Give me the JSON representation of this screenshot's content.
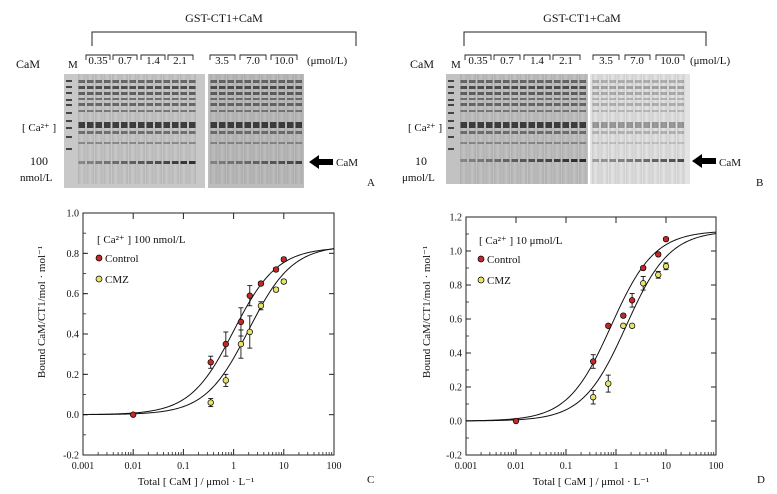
{
  "panels_top": [
    {
      "header": "GST-CT1+CaM",
      "lane_labels": [
        "M",
        "0.35",
        "0.7",
        "1.4",
        "2.1",
        "3.5",
        "7.0",
        "10.0"
      ],
      "unit": "(μmol/L)",
      "left_label": "CaM",
      "ca_label": "[ Ca²⁺ ]",
      "conc_value": "100",
      "conc_unit": "nmol/L",
      "arrow_label": "CaM",
      "panel_letter": "A"
    },
    {
      "header": "GST-CT1+CaM",
      "lane_labels": [
        "M",
        "0.35",
        "0.7",
        "1.4",
        "2.1",
        "3.5",
        "7.0",
        "10.0"
      ],
      "unit": "(μmol/L)",
      "left_label": "CaM",
      "ca_label": "[ Ca²⁺ ]",
      "conc_value": "10",
      "conc_unit": "μmol/L",
      "arrow_label": "CaM",
      "panel_letter": "B"
    }
  ],
  "chart_data": [
    {
      "type": "scatter",
      "panel_letter": "C",
      "annotation": "[ Ca²⁺ ] 100 nmol/L",
      "xlabel": "Total [ CaM ] / μmol · L⁻¹",
      "ylabel": "Bound CaM/CT1/mol · mol⁻¹",
      "xscale": "log",
      "xlim": [
        0.001,
        100
      ],
      "ylim": [
        -0.2,
        1.0
      ],
      "xticks": [
        "0.001",
        "0.01",
        "0.1",
        "1",
        "10",
        "100"
      ],
      "yticks": [
        "-0.2",
        "0.0",
        "0.2",
        "0.4",
        "0.6",
        "0.8",
        "1.0"
      ],
      "legend_position": "top-left",
      "series": [
        {
          "name": "Control",
          "color": "#c62828",
          "x": [
            0.01,
            0.35,
            0.7,
            1.4,
            2.1,
            3.5,
            7.0,
            10.0
          ],
          "y": [
            0.0,
            0.26,
            0.35,
            0.46,
            0.59,
            0.65,
            0.72,
            0.77
          ],
          "err": [
            0,
            0.03,
            0.06,
            0.07,
            0.05,
            0.01,
            0.01,
            0.01
          ],
          "fit": {
            "bmax": 0.83,
            "kd": 1.0
          }
        },
        {
          "name": "CMZ",
          "color": "#e6e36a",
          "x": [
            0.35,
            0.7,
            1.4,
            2.1,
            3.5,
            7.0,
            10.0
          ],
          "y": [
            0.06,
            0.17,
            0.35,
            0.41,
            0.54,
            0.62,
            0.66
          ],
          "err": [
            0.02,
            0.03,
            0.07,
            0.08,
            0.02,
            0.01,
            0.01
          ],
          "fit": {
            "bmax": 0.84,
            "kd": 2.0
          }
        }
      ]
    },
    {
      "type": "scatter",
      "panel_letter": "D",
      "annotation": "[ Ca²⁺ ] 10 μmol/L",
      "xlabel": "Total [ CaM ] / μmol · L⁻¹",
      "ylabel": "Bound CaM/CT1/mol · mol⁻¹",
      "xscale": "log",
      "xlim": [
        0.001,
        100
      ],
      "ylim": [
        -0.2,
        1.2
      ],
      "xticks": [
        "0.001",
        "0.01",
        "0.1",
        "1",
        "10",
        "100"
      ],
      "yticks": [
        "-0.2",
        "0.0",
        "0.2",
        "0.4",
        "0.6",
        "0.8",
        "1.0",
        "1.2"
      ],
      "legend_position": "top-left",
      "series": [
        {
          "name": "Control",
          "color": "#c62828",
          "x": [
            0.01,
            0.35,
            0.7,
            1.4,
            2.1,
            3.5,
            7.0,
            10.0
          ],
          "y": [
            0.0,
            0.35,
            0.56,
            0.62,
            0.71,
            0.9,
            0.98,
            1.07
          ],
          "err": [
            0,
            0.04,
            0.01,
            0.01,
            0.04,
            0.01,
            0.01,
            0.01
          ],
          "fit": {
            "bmax": 1.12,
            "kd": 0.8
          }
        },
        {
          "name": "CMZ",
          "color": "#e6e36a",
          "x": [
            0.35,
            0.7,
            1.4,
            2.1,
            3.5,
            7.0,
            10.0
          ],
          "y": [
            0.14,
            0.22,
            0.56,
            0.56,
            0.81,
            0.86,
            0.91
          ],
          "err": [
            0.04,
            0.05,
            0.01,
            0.01,
            0.04,
            0.02,
            0.02
          ],
          "fit": {
            "bmax": 1.12,
            "kd": 1.6
          }
        }
      ]
    }
  ]
}
